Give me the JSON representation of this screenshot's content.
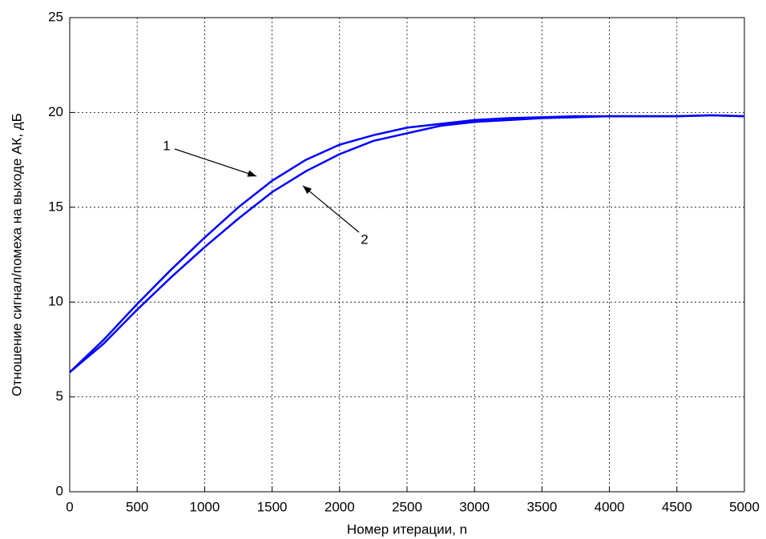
{
  "chart_data": {
    "type": "line",
    "xlabel": "Номер итерации,  n",
    "ylabel": "Отношение сигнал/помеха на выходе АК,  дБ",
    "x": [
      0,
      250,
      500,
      750,
      1000,
      1250,
      1500,
      1750,
      2000,
      2250,
      2500,
      2750,
      3000,
      3250,
      3500,
      3750,
      4000,
      4250,
      4500,
      4750,
      5000
    ],
    "series": [
      {
        "name": "1",
        "color": "#0000ff",
        "values": [
          6.3,
          8.0,
          9.9,
          11.7,
          13.4,
          15.0,
          16.4,
          17.5,
          18.3,
          18.8,
          19.2,
          19.4,
          19.6,
          19.7,
          19.75,
          19.8,
          19.8,
          19.8,
          19.8,
          19.85,
          19.8
        ]
      },
      {
        "name": "2",
        "color": "#0000ff",
        "values": [
          6.3,
          7.8,
          9.6,
          11.3,
          12.9,
          14.4,
          15.8,
          16.9,
          17.8,
          18.5,
          18.9,
          19.3,
          19.5,
          19.6,
          19.7,
          19.75,
          19.8,
          19.8,
          19.8,
          19.85,
          19.8
        ]
      }
    ],
    "xlim": [
      0,
      5000
    ],
    "xticks": [
      0,
      500,
      1000,
      1500,
      2000,
      2500,
      3000,
      3500,
      4000,
      4500,
      5000
    ],
    "ylim": [
      0,
      25
    ],
    "yticks": [
      0,
      5,
      10,
      15,
      20,
      25
    ],
    "grid": true
  }
}
